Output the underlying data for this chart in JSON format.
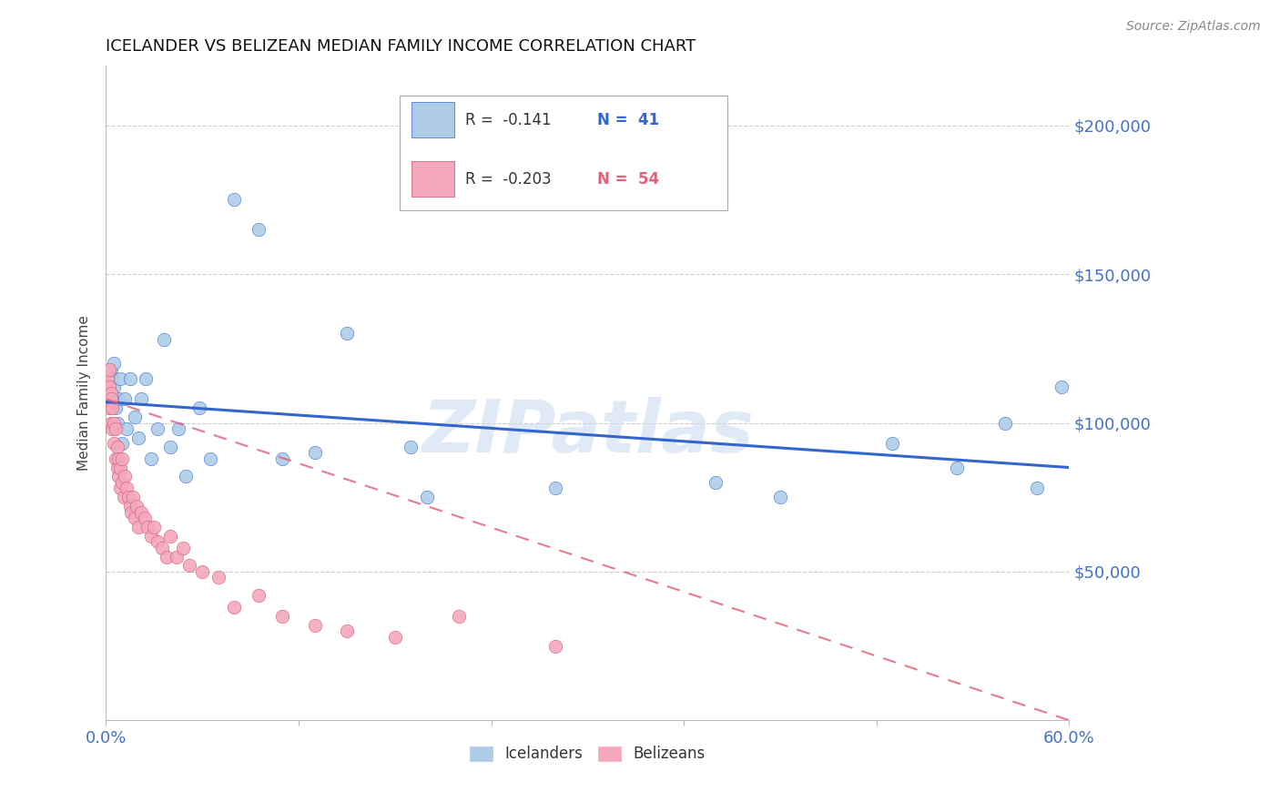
{
  "title": "ICELANDER VS BELIZEAN MEDIAN FAMILY INCOME CORRELATION CHART",
  "source": "Source: ZipAtlas.com",
  "ylabel": "Median Family Income",
  "y_tick_labels": [
    "$50,000",
    "$100,000",
    "$150,000",
    "$200,000"
  ],
  "y_tick_values": [
    50000,
    100000,
    150000,
    200000
  ],
  "xmin": 0.0,
  "xmax": 0.6,
  "ymin": 0,
  "ymax": 220000,
  "icelander_color": "#aecce8",
  "belizean_color": "#f4a8bc",
  "icelander_line_color": "#3366cc",
  "belizean_line_color": "#e8607a",
  "legend_R1": "R =  -0.141",
  "legend_N1": "N =  41",
  "legend_R2": "R =  -0.203",
  "legend_N2": "N =  54",
  "watermark": "ZIPatlas",
  "icelander_x": [
    0.002,
    0.003,
    0.004,
    0.004,
    0.005,
    0.005,
    0.006,
    0.007,
    0.008,
    0.009,
    0.01,
    0.012,
    0.013,
    0.015,
    0.018,
    0.02,
    0.022,
    0.025,
    0.028,
    0.032,
    0.036,
    0.04,
    0.045,
    0.05,
    0.058,
    0.065,
    0.08,
    0.095,
    0.11,
    0.13,
    0.15,
    0.19,
    0.2,
    0.28,
    0.38,
    0.42,
    0.49,
    0.53,
    0.56,
    0.58,
    0.595
  ],
  "icelander_y": [
    110000,
    118000,
    115000,
    108000,
    120000,
    112000,
    105000,
    100000,
    108000,
    115000,
    93000,
    108000,
    98000,
    115000,
    102000,
    95000,
    108000,
    115000,
    88000,
    98000,
    128000,
    92000,
    98000,
    82000,
    105000,
    88000,
    175000,
    165000,
    88000,
    90000,
    130000,
    92000,
    75000,
    78000,
    80000,
    75000,
    93000,
    85000,
    100000,
    78000,
    112000
  ],
  "belizean_x": [
    0.001,
    0.001,
    0.002,
    0.002,
    0.002,
    0.003,
    0.003,
    0.003,
    0.004,
    0.004,
    0.005,
    0.005,
    0.006,
    0.006,
    0.007,
    0.007,
    0.008,
    0.008,
    0.009,
    0.009,
    0.01,
    0.01,
    0.011,
    0.012,
    0.013,
    0.014,
    0.015,
    0.016,
    0.017,
    0.018,
    0.019,
    0.02,
    0.022,
    0.024,
    0.026,
    0.028,
    0.03,
    0.032,
    0.035,
    0.038,
    0.04,
    0.044,
    0.048,
    0.052,
    0.06,
    0.07,
    0.08,
    0.095,
    0.11,
    0.13,
    0.15,
    0.18,
    0.22,
    0.28
  ],
  "belizean_y": [
    115000,
    108000,
    112000,
    105000,
    118000,
    110000,
    100000,
    108000,
    98000,
    105000,
    100000,
    93000,
    98000,
    88000,
    92000,
    85000,
    88000,
    82000,
    85000,
    78000,
    80000,
    88000,
    75000,
    82000,
    78000,
    75000,
    72000,
    70000,
    75000,
    68000,
    72000,
    65000,
    70000,
    68000,
    65000,
    62000,
    65000,
    60000,
    58000,
    55000,
    62000,
    55000,
    58000,
    52000,
    50000,
    48000,
    38000,
    42000,
    35000,
    32000,
    30000,
    28000,
    35000,
    25000
  ]
}
